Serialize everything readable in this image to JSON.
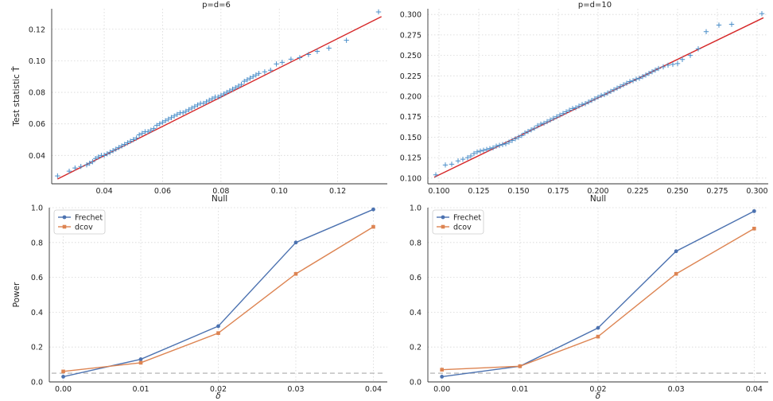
{
  "chart_data": [
    {
      "type": "scatter",
      "title": "p=d=6",
      "xlabel": "Null",
      "ylabel": "Test statistic T̂",
      "xlim": [
        0.022,
        0.137
      ],
      "ylim": [
        0.022,
        0.133
      ],
      "xticks": [
        0.04,
        0.06,
        0.08,
        0.1,
        0.12
      ],
      "xtick_labels": [
        "0.04",
        "0.06",
        "0.08",
        "0.10",
        "0.12"
      ],
      "yticks": [
        0.04,
        0.06,
        0.08,
        0.1,
        0.12
      ],
      "ytick_labels": [
        "0.04",
        "0.06",
        "0.08",
        "0.10",
        "0.12"
      ],
      "marker_color": "#4c8fc9",
      "reference_line": {
        "x": [
          0.024,
          0.135
        ],
        "y": [
          0.025,
          0.128
        ],
        "color": "#d62728"
      },
      "points": [
        [
          0.024,
          0.027
        ],
        [
          0.028,
          0.03
        ],
        [
          0.03,
          0.032
        ],
        [
          0.032,
          0.033
        ],
        [
          0.034,
          0.034
        ],
        [
          0.035,
          0.035
        ],
        [
          0.036,
          0.036
        ],
        [
          0.037,
          0.038
        ],
        [
          0.038,
          0.039
        ],
        [
          0.039,
          0.04
        ],
        [
          0.04,
          0.04
        ],
        [
          0.041,
          0.041
        ],
        [
          0.042,
          0.042
        ],
        [
          0.043,
          0.043
        ],
        [
          0.044,
          0.044
        ],
        [
          0.045,
          0.045
        ],
        [
          0.046,
          0.046
        ],
        [
          0.047,
          0.047
        ],
        [
          0.048,
          0.048
        ],
        [
          0.049,
          0.049
        ],
        [
          0.05,
          0.05
        ],
        [
          0.051,
          0.051
        ],
        [
          0.052,
          0.053
        ],
        [
          0.053,
          0.054
        ],
        [
          0.054,
          0.055
        ],
        [
          0.055,
          0.055
        ],
        [
          0.056,
          0.056
        ],
        [
          0.057,
          0.057
        ],
        [
          0.058,
          0.059
        ],
        [
          0.059,
          0.06
        ],
        [
          0.06,
          0.061
        ],
        [
          0.061,
          0.062
        ],
        [
          0.062,
          0.063
        ],
        [
          0.063,
          0.064
        ],
        [
          0.064,
          0.065
        ],
        [
          0.065,
          0.066
        ],
        [
          0.066,
          0.067
        ],
        [
          0.067,
          0.067
        ],
        [
          0.068,
          0.068
        ],
        [
          0.069,
          0.069
        ],
        [
          0.07,
          0.07
        ],
        [
          0.071,
          0.071
        ],
        [
          0.072,
          0.072
        ],
        [
          0.073,
          0.073
        ],
        [
          0.074,
          0.073
        ],
        [
          0.075,
          0.074
        ],
        [
          0.076,
          0.075
        ],
        [
          0.077,
          0.076
        ],
        [
          0.078,
          0.077
        ],
        [
          0.079,
          0.077
        ],
        [
          0.08,
          0.078
        ],
        [
          0.081,
          0.079
        ],
        [
          0.082,
          0.08
        ],
        [
          0.083,
          0.081
        ],
        [
          0.084,
          0.082
        ],
        [
          0.085,
          0.083
        ],
        [
          0.086,
          0.084
        ],
        [
          0.087,
          0.085
        ],
        [
          0.088,
          0.087
        ],
        [
          0.089,
          0.088
        ],
        [
          0.09,
          0.089
        ],
        [
          0.091,
          0.09
        ],
        [
          0.092,
          0.091
        ],
        [
          0.093,
          0.092
        ],
        [
          0.095,
          0.093
        ],
        [
          0.097,
          0.094
        ],
        [
          0.099,
          0.098
        ],
        [
          0.101,
          0.099
        ],
        [
          0.104,
          0.101
        ],
        [
          0.107,
          0.102
        ],
        [
          0.11,
          0.104
        ],
        [
          0.113,
          0.106
        ],
        [
          0.117,
          0.108
        ],
        [
          0.123,
          0.113
        ],
        [
          0.134,
          0.131
        ]
      ]
    },
    {
      "type": "scatter",
      "title": "p=d=10",
      "xlabel": "Null",
      "ylabel": "",
      "xlim": [
        0.093,
        0.307
      ],
      "ylim": [
        0.093,
        0.307
      ],
      "xticks": [
        0.1,
        0.125,
        0.15,
        0.175,
        0.2,
        0.225,
        0.25,
        0.275,
        0.3
      ],
      "xtick_labels": [
        "0.100",
        "0.125",
        "0.150",
        "0.175",
        "0.200",
        "0.225",
        "0.250",
        "0.275",
        "0.300"
      ],
      "yticks": [
        0.1,
        0.125,
        0.15,
        0.175,
        0.2,
        0.225,
        0.25,
        0.275,
        0.3
      ],
      "ytick_labels": [
        "0.100",
        "0.125",
        "0.150",
        "0.175",
        "0.200",
        "0.225",
        "0.250",
        "0.275",
        "0.300"
      ],
      "marker_color": "#4c8fc9",
      "reference_line": {
        "x": [
          0.097,
          0.304
        ],
        "y": [
          0.101,
          0.296
        ],
        "color": "#d62728"
      },
      "points": [
        [
          0.098,
          0.104
        ],
        [
          0.104,
          0.116
        ],
        [
          0.108,
          0.117
        ],
        [
          0.112,
          0.121
        ],
        [
          0.115,
          0.123
        ],
        [
          0.118,
          0.125
        ],
        [
          0.12,
          0.127
        ],
        [
          0.122,
          0.13
        ],
        [
          0.124,
          0.132
        ],
        [
          0.126,
          0.133
        ],
        [
          0.128,
          0.134
        ],
        [
          0.13,
          0.135
        ],
        [
          0.132,
          0.136
        ],
        [
          0.134,
          0.137
        ],
        [
          0.136,
          0.139
        ],
        [
          0.138,
          0.14
        ],
        [
          0.14,
          0.141
        ],
        [
          0.142,
          0.142
        ],
        [
          0.144,
          0.144
        ],
        [
          0.146,
          0.146
        ],
        [
          0.148,
          0.148
        ],
        [
          0.15,
          0.15
        ],
        [
          0.152,
          0.152
        ],
        [
          0.154,
          0.155
        ],
        [
          0.156,
          0.157
        ],
        [
          0.158,
          0.159
        ],
        [
          0.16,
          0.161
        ],
        [
          0.162,
          0.164
        ],
        [
          0.164,
          0.166
        ],
        [
          0.166,
          0.167
        ],
        [
          0.168,
          0.169
        ],
        [
          0.17,
          0.171
        ],
        [
          0.172,
          0.173
        ],
        [
          0.174,
          0.175
        ],
        [
          0.176,
          0.177
        ],
        [
          0.178,
          0.179
        ],
        [
          0.18,
          0.181
        ],
        [
          0.182,
          0.183
        ],
        [
          0.184,
          0.185
        ],
        [
          0.186,
          0.186
        ],
        [
          0.188,
          0.188
        ],
        [
          0.19,
          0.19
        ],
        [
          0.192,
          0.191
        ],
        [
          0.194,
          0.193
        ],
        [
          0.196,
          0.195
        ],
        [
          0.198,
          0.197
        ],
        [
          0.2,
          0.199
        ],
        [
          0.202,
          0.201
        ],
        [
          0.204,
          0.202
        ],
        [
          0.206,
          0.204
        ],
        [
          0.208,
          0.206
        ],
        [
          0.21,
          0.208
        ],
        [
          0.212,
          0.21
        ],
        [
          0.214,
          0.212
        ],
        [
          0.216,
          0.214
        ],
        [
          0.218,
          0.216
        ],
        [
          0.22,
          0.218
        ],
        [
          0.222,
          0.219
        ],
        [
          0.224,
          0.221
        ],
        [
          0.226,
          0.222
        ],
        [
          0.228,
          0.224
        ],
        [
          0.23,
          0.226
        ],
        [
          0.232,
          0.228
        ],
        [
          0.234,
          0.23
        ],
        [
          0.236,
          0.232
        ],
        [
          0.238,
          0.234
        ],
        [
          0.241,
          0.236
        ],
        [
          0.244,
          0.238
        ],
        [
          0.247,
          0.239
        ],
        [
          0.25,
          0.24
        ],
        [
          0.253,
          0.245
        ],
        [
          0.258,
          0.25
        ],
        [
          0.263,
          0.258
        ],
        [
          0.268,
          0.279
        ],
        [
          0.276,
          0.287
        ],
        [
          0.284,
          0.288
        ],
        [
          0.303,
          0.301
        ]
      ]
    },
    {
      "type": "line",
      "title": "",
      "xlabel": "δ",
      "ylabel": "Power",
      "xlim": [
        -0.0018,
        0.0418
      ],
      "ylim": [
        0.0,
        1.0
      ],
      "x": [
        0.0,
        0.01,
        0.02,
        0.03,
        0.04
      ],
      "xtick_labels": [
        "0.00",
        "0.01",
        "0.02",
        "0.03",
        "0.04"
      ],
      "yticks": [
        0.0,
        0.2,
        0.4,
        0.6,
        0.8,
        1.0
      ],
      "ytick_labels": [
        "0.0",
        "0.2",
        "0.4",
        "0.6",
        "0.8",
        "1.0"
      ],
      "legend_position": "top-left",
      "reference_value": 0.05,
      "series": [
        {
          "name": "Frechet",
          "color": "#4c72b0",
          "marker": "circle",
          "values": [
            0.03,
            0.13,
            0.32,
            0.8,
            0.99
          ]
        },
        {
          "name": "dcov",
          "color": "#dd8452",
          "marker": "square",
          "values": [
            0.06,
            0.11,
            0.28,
            0.62,
            0.89
          ]
        }
      ]
    },
    {
      "type": "line",
      "title": "",
      "xlabel": "δ",
      "ylabel": "",
      "xlim": [
        -0.0018,
        0.0418
      ],
      "ylim": [
        0.0,
        1.0
      ],
      "x": [
        0.0,
        0.01,
        0.02,
        0.03,
        0.04
      ],
      "xtick_labels": [
        "0.00",
        "0.01",
        "0.02",
        "0.03",
        "0.04"
      ],
      "yticks": [
        0.0,
        0.2,
        0.4,
        0.6,
        0.8,
        1.0
      ],
      "ytick_labels": [
        "0.0",
        "0.2",
        "0.4",
        "0.6",
        "0.8",
        "1.0"
      ],
      "legend_position": "top-left",
      "reference_value": 0.05,
      "series": [
        {
          "name": "Frechet",
          "color": "#4c72b0",
          "marker": "circle",
          "values": [
            0.03,
            0.09,
            0.31,
            0.75,
            0.98
          ]
        },
        {
          "name": "dcov",
          "color": "#dd8452",
          "marker": "square",
          "values": [
            0.07,
            0.09,
            0.26,
            0.62,
            0.88
          ]
        }
      ]
    }
  ]
}
